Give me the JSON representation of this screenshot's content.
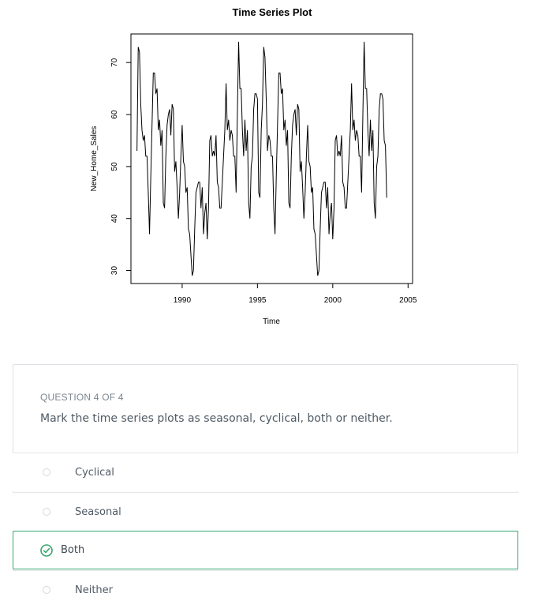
{
  "chart_data": {
    "type": "line",
    "title": "Time Series Plot",
    "xlabel": "Time",
    "ylabel": "New_Home_Sales",
    "xlim": [
      1986.6,
      2005.3
    ],
    "ylim": [
      27.5,
      75.5
    ],
    "x_ticks": [
      1990,
      1995,
      2000,
      2005
    ],
    "y_ticks": [
      30,
      40,
      50,
      60,
      70
    ],
    "x_start": 1987.0,
    "x_step": 0.08333,
    "values": [
      53,
      73,
      72,
      62,
      57,
      55,
      56,
      52,
      52,
      45,
      37,
      48,
      58,
      68,
      68,
      64,
      65,
      57,
      59,
      54,
      57,
      43,
      42,
      52,
      58,
      60,
      61,
      56,
      62,
      61,
      49,
      51,
      46,
      40,
      45,
      52,
      58,
      51,
      50,
      45,
      46,
      38,
      37,
      33,
      29,
      30,
      38,
      45,
      46,
      47,
      47,
      42,
      46,
      37,
      41,
      43,
      36,
      42,
      55,
      56,
      52,
      53,
      52,
      56,
      47,
      46,
      42,
      42,
      47,
      52,
      57,
      66,
      57,
      59,
      55,
      57,
      56,
      52,
      52,
      45,
      60,
      74,
      65,
      65,
      57,
      52,
      59,
      53,
      57,
      43,
      40,
      50,
      52,
      61,
      64,
      64,
      63,
      45,
      44,
      57,
      62,
      73,
      71,
      63,
      53,
      56,
      55,
      52,
      52,
      42,
      37,
      48,
      58,
      68,
      68,
      64,
      65,
      57,
      59,
      54,
      57,
      43,
      42,
      52,
      58,
      60,
      61,
      56,
      62,
      61,
      49,
      51,
      46,
      40,
      45,
      52,
      58,
      51,
      50,
      45,
      46,
      38,
      37,
      33,
      29,
      30,
      38,
      45,
      46,
      47,
      47,
      42,
      46,
      37,
      41,
      43,
      36,
      42,
      55,
      56,
      52,
      53,
      52,
      56,
      47,
      46,
      42,
      42,
      47,
      52,
      57,
      66,
      57,
      59,
      55,
      57,
      56,
      52,
      52,
      45,
      60,
      74,
      65,
      65,
      57,
      52,
      59,
      53,
      57,
      43,
      40,
      50,
      52,
      61,
      64,
      64,
      63,
      55,
      54,
      44
    ]
  },
  "question": {
    "header": "QUESTION 4 OF 4",
    "prompt": "Mark the time series plots as seasonal, cyclical, both or neither.",
    "options": [
      {
        "label": "Cyclical",
        "selected": false
      },
      {
        "label": "Seasonal",
        "selected": false
      },
      {
        "label": "Both",
        "selected": true
      },
      {
        "label": "Neither",
        "selected": false
      }
    ],
    "accent_color": "#3aa672"
  }
}
